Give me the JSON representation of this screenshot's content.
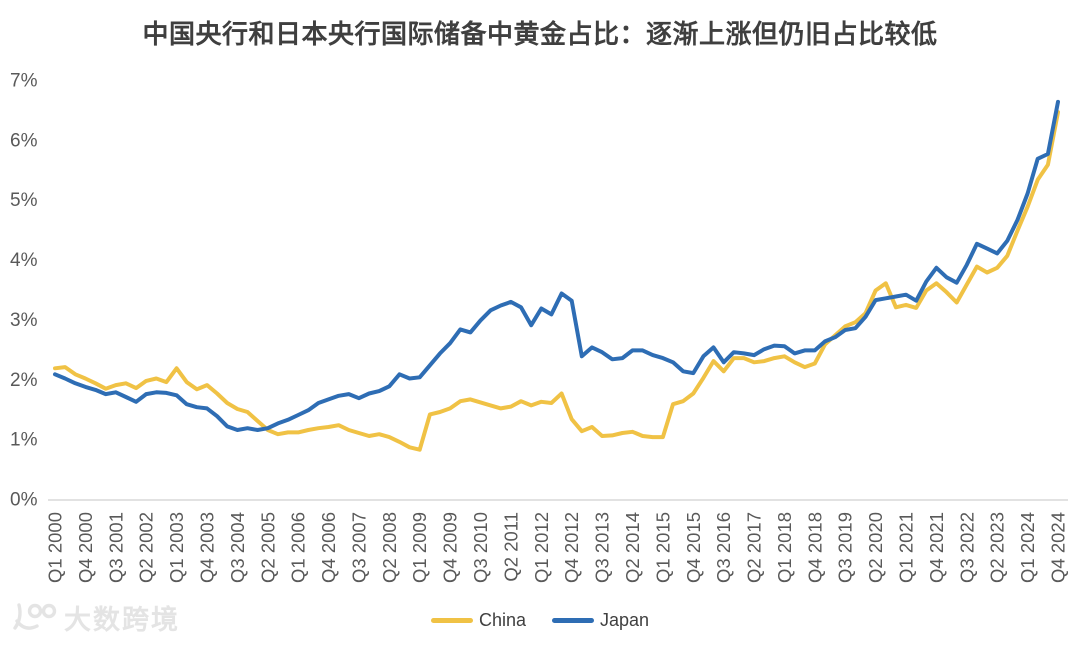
{
  "title": "中国央行和日本央行国际储备中黄金占比：逐渐上涨但仍旧占比较低",
  "watermark": {
    "logo": "100",
    "text": "大数跨境"
  },
  "colors": {
    "china": "#F0C245",
    "japan": "#2E6DB4",
    "axis_line": "#d9d9d9",
    "tick_text": "#595959",
    "title_text": "#3f3f3f"
  },
  "chart_data": {
    "type": "line",
    "title": "中国央行和日本央行国际储备中黄金占比：逐渐上涨但仍旧占比较低",
    "x_interval": "quarterly",
    "x_start": "Q1 2000",
    "x_end": "Q4 2024",
    "x_tick_labels": [
      "Q1 2000",
      "Q4 2000",
      "Q3 2001",
      "Q2 2002",
      "Q1 2003",
      "Q4 2003",
      "Q3 2004",
      "Q2 2005",
      "Q1 2006",
      "Q4 2006",
      "Q3 2007",
      "Q2 2008",
      "Q1 2009",
      "Q4 2009",
      "Q3 2010",
      "Q2 2011",
      "Q1 2012",
      "Q4 2012",
      "Q3 2013",
      "Q2 2014",
      "Q1 2015",
      "Q4 2015",
      "Q3 2016",
      "Q2 2017",
      "Q1 2018",
      "Q4 2018",
      "Q3 2019",
      "Q2 2020",
      "Q1 2021",
      "Q4 2021",
      "Q3 2022",
      "Q2 2023",
      "Q1 2024",
      "Q4 2024"
    ],
    "x_tick_every_n_quarters": 3,
    "ytick_labels": [
      "0%",
      "1%",
      "2%",
      "3%",
      "4%",
      "5%",
      "6%",
      "7%"
    ],
    "ylim": [
      0,
      7
    ],
    "y_unit": "%",
    "grid": false,
    "legend_position": "bottom",
    "series": [
      {
        "name": "China",
        "color": "#F0C245",
        "values": [
          2.2,
          2.22,
          2.1,
          2.03,
          1.95,
          1.86,
          1.92,
          1.95,
          1.87,
          1.99,
          2.03,
          1.97,
          2.2,
          1.97,
          1.85,
          1.92,
          1.78,
          1.62,
          1.52,
          1.47,
          1.32,
          1.17,
          1.1,
          1.13,
          1.13,
          1.17,
          1.2,
          1.22,
          1.25,
          1.17,
          1.12,
          1.07,
          1.1,
          1.05,
          0.97,
          0.88,
          0.84,
          1.43,
          1.47,
          1.53,
          1.65,
          1.68,
          1.63,
          1.58,
          1.53,
          1.56,
          1.65,
          1.58,
          1.64,
          1.62,
          1.78,
          1.35,
          1.15,
          1.22,
          1.07,
          1.08,
          1.12,
          1.14,
          1.07,
          1.05,
          1.05,
          1.6,
          1.65,
          1.78,
          2.04,
          2.32,
          2.15,
          2.37,
          2.37,
          2.3,
          2.32,
          2.37,
          2.4,
          2.3,
          2.22,
          2.28,
          2.6,
          2.75,
          2.9,
          2.97,
          3.12,
          3.5,
          3.62,
          3.22,
          3.26,
          3.21,
          3.5,
          3.62,
          3.47,
          3.3,
          3.6,
          3.9,
          3.8,
          3.88,
          4.08,
          4.5,
          4.9,
          5.35,
          5.6,
          6.48
        ]
      },
      {
        "name": "Japan",
        "color": "#2E6DB4",
        "values": [
          2.1,
          2.03,
          1.95,
          1.89,
          1.84,
          1.77,
          1.8,
          1.72,
          1.64,
          1.77,
          1.8,
          1.79,
          1.75,
          1.6,
          1.55,
          1.53,
          1.4,
          1.23,
          1.17,
          1.2,
          1.17,
          1.2,
          1.28,
          1.34,
          1.42,
          1.5,
          1.62,
          1.68,
          1.74,
          1.77,
          1.7,
          1.78,
          1.82,
          1.9,
          2.1,
          2.03,
          2.05,
          2.25,
          2.45,
          2.62,
          2.85,
          2.8,
          3.0,
          3.17,
          3.25,
          3.31,
          3.22,
          2.92,
          3.2,
          3.1,
          3.45,
          3.33,
          2.4,
          2.55,
          2.47,
          2.35,
          2.37,
          2.5,
          2.5,
          2.42,
          2.37,
          2.3,
          2.15,
          2.12,
          2.4,
          2.55,
          2.3,
          2.47,
          2.45,
          2.42,
          2.52,
          2.58,
          2.57,
          2.45,
          2.5,
          2.5,
          2.65,
          2.72,
          2.84,
          2.87,
          3.06,
          3.34,
          3.37,
          3.4,
          3.43,
          3.33,
          3.65,
          3.88,
          3.72,
          3.63,
          3.93,
          4.28,
          4.2,
          4.12,
          4.33,
          4.68,
          5.12,
          5.7,
          5.78,
          6.65
        ]
      }
    ]
  }
}
